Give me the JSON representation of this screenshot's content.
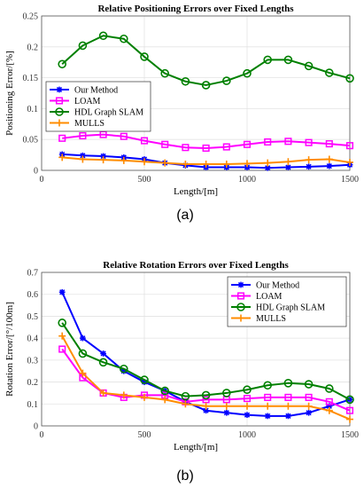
{
  "chart_data": [
    {
      "type": "line",
      "title": "Relative Positioning Errors over Fixed Lengths",
      "xlabel": "Length/[m]",
      "ylabel": "Positioning Error/[%]",
      "xlim": [
        0,
        1500
      ],
      "ylim": [
        0,
        0.25
      ],
      "xticks": [
        "0",
        "500",
        "1000",
        "1500"
      ],
      "yticks": [
        "0",
        "0.05",
        "0.1",
        "0.15",
        "0.2",
        "0.25"
      ],
      "grid": true,
      "legend_position": "middle-left",
      "caption": "(a)",
      "x": [
        100,
        200,
        300,
        400,
        500,
        600,
        700,
        800,
        900,
        1000,
        1100,
        1200,
        1300,
        1400,
        1500
      ],
      "series": [
        {
          "name": "Our Method",
          "color": "#0000ff",
          "marker": "star",
          "values": [
            0.026,
            0.024,
            0.023,
            0.021,
            0.018,
            0.012,
            0.008,
            0.005,
            0.005,
            0.005,
            0.004,
            0.005,
            0.006,
            0.007,
            0.009
          ]
        },
        {
          "name": "LOAM",
          "color": "#ff00ff",
          "marker": "square",
          "values": [
            0.052,
            0.056,
            0.058,
            0.055,
            0.048,
            0.042,
            0.037,
            0.036,
            0.038,
            0.042,
            0.046,
            0.047,
            0.045,
            0.043,
            0.04
          ]
        },
        {
          "name": "HDL Graph SLAM",
          "color": "#008000",
          "marker": "circle",
          "values": [
            0.172,
            0.202,
            0.218,
            0.213,
            0.184,
            0.157,
            0.144,
            0.138,
            0.145,
            0.157,
            0.179,
            0.179,
            0.169,
            0.158,
            0.149
          ]
        },
        {
          "name": "MULLS",
          "color": "#ff8c00",
          "marker": "plus",
          "values": [
            0.021,
            0.018,
            0.017,
            0.016,
            0.014,
            0.012,
            0.01,
            0.01,
            0.01,
            0.011,
            0.012,
            0.014,
            0.017,
            0.018,
            0.013
          ]
        }
      ]
    },
    {
      "type": "line",
      "title": "Relative Rotation Errors over Fixed Lengths",
      "xlabel": "Length/[m]",
      "ylabel": "Rotation Error/[°/100m]",
      "xlim": [
        0,
        1500
      ],
      "ylim": [
        0,
        0.7
      ],
      "xticks": [
        "0",
        "500",
        "1000",
        "1500"
      ],
      "yticks": [
        "0",
        "0.1",
        "0.2",
        "0.3",
        "0.4",
        "0.5",
        "0.6",
        "0.7"
      ],
      "grid": true,
      "legend_position": "top-right",
      "caption": "(b)",
      "x": [
        100,
        200,
        300,
        400,
        500,
        600,
        700,
        800,
        900,
        1000,
        1100,
        1200,
        1300,
        1400,
        1500
      ],
      "series": [
        {
          "name": "Our Method",
          "color": "#0000ff",
          "marker": "star",
          "values": [
            0.61,
            0.4,
            0.33,
            0.25,
            0.2,
            0.16,
            0.11,
            0.07,
            0.06,
            0.05,
            0.045,
            0.045,
            0.06,
            0.09,
            0.12
          ]
        },
        {
          "name": "LOAM",
          "color": "#ff00ff",
          "marker": "square",
          "values": [
            0.35,
            0.22,
            0.15,
            0.13,
            0.14,
            0.14,
            0.11,
            0.12,
            0.12,
            0.125,
            0.13,
            0.13,
            0.13,
            0.11,
            0.07
          ]
        },
        {
          "name": "HDL Graph SLAM",
          "color": "#008000",
          "marker": "circle",
          "values": [
            0.47,
            0.33,
            0.29,
            0.26,
            0.21,
            0.16,
            0.135,
            0.14,
            0.15,
            0.165,
            0.185,
            0.195,
            0.19,
            0.17,
            0.12
          ]
        },
        {
          "name": "MULLS",
          "color": "#ff8c00",
          "marker": "plus",
          "values": [
            0.41,
            0.24,
            0.15,
            0.14,
            0.13,
            0.12,
            0.1,
            0.09,
            0.09,
            0.09,
            0.09,
            0.09,
            0.09,
            0.07,
            0.03
          ]
        }
      ]
    }
  ]
}
